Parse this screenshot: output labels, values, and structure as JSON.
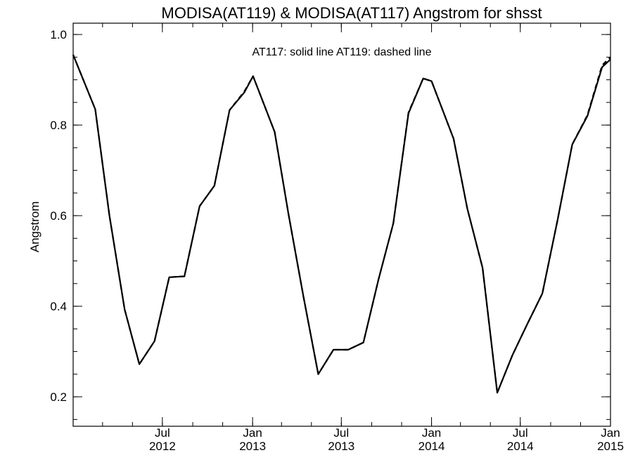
{
  "chart_data": {
    "type": "line",
    "title": "MODISA(AT119) & MODISA(AT117)  Angstrom for shsst",
    "annotation": "AT117: solid line   AT119: dashed line",
    "xlabel": "",
    "ylabel": "Angstrom",
    "xlim": [
      "2012-01-01",
      "2015-01-01"
    ],
    "ylim": [
      0.135,
      1.025
    ],
    "y_ticks": [
      0.2,
      0.4,
      0.6,
      0.8,
      1.0
    ],
    "y_tick_labels": [
      "0.2",
      "0.4",
      "0.6",
      "0.8",
      "1.0"
    ],
    "y_minor_step": 0.05,
    "x_ticks": [
      {
        "date": "2012-07-01",
        "month": "Jul",
        "year": "2012"
      },
      {
        "date": "2013-01-01",
        "month": "Jan",
        "year": "2013"
      },
      {
        "date": "2013-07-01",
        "month": "Jul",
        "year": "2013"
      },
      {
        "date": "2014-01-01",
        "month": "Jan",
        "year": "2014"
      },
      {
        "date": "2014-07-01",
        "month": "Jul",
        "year": "2014"
      },
      {
        "date": "2015-01-01",
        "month": "Jan",
        "year": "2015"
      }
    ],
    "x_minor_dates": [
      "2012-01-01",
      "2012-03-01",
      "2012-05-01",
      "2012-07-01",
      "2012-09-01",
      "2012-11-01",
      "2013-01-01",
      "2013-03-01",
      "2013-05-01",
      "2013-07-01",
      "2013-09-01",
      "2013-11-01",
      "2014-01-01",
      "2014-03-01",
      "2014-05-01",
      "2014-07-01",
      "2014-09-01",
      "2014-11-01",
      "2015-01-01"
    ],
    "grid": false,
    "series": [
      {
        "name": "AT117",
        "style": "solid",
        "color": "#000000",
        "points": [
          [
            "2012-01-01",
            0.955
          ],
          [
            "2012-02-15",
            0.835
          ],
          [
            "2012-03-15",
            0.6
          ],
          [
            "2012-04-15",
            0.393
          ],
          [
            "2012-05-15",
            0.272
          ],
          [
            "2012-06-15",
            0.323
          ],
          [
            "2012-07-15",
            0.464
          ],
          [
            "2012-08-15",
            0.466
          ],
          [
            "2012-09-15",
            0.621
          ],
          [
            "2012-10-15",
            0.666
          ],
          [
            "2012-11-15",
            0.833
          ],
          [
            "2012-12-15",
            0.872
          ],
          [
            "2013-01-02",
            0.908
          ],
          [
            "2013-02-15",
            0.785
          ],
          [
            "2013-03-15",
            0.605
          ],
          [
            "2013-04-15",
            0.42
          ],
          [
            "2013-05-15",
            0.25
          ],
          [
            "2013-06-15",
            0.304
          ],
          [
            "2013-07-15",
            0.304
          ],
          [
            "2013-08-15",
            0.32
          ],
          [
            "2013-09-15",
            0.46
          ],
          [
            "2013-10-15",
            0.583
          ],
          [
            "2013-11-15",
            0.826
          ],
          [
            "2013-12-15",
            0.903
          ],
          [
            "2014-01-01",
            0.897
          ],
          [
            "2014-02-15",
            0.77
          ],
          [
            "2014-03-15",
            0.615
          ],
          [
            "2014-04-15",
            0.485
          ],
          [
            "2014-05-15",
            0.209
          ],
          [
            "2014-06-15",
            0.292
          ],
          [
            "2014-07-15",
            0.36
          ],
          [
            "2014-08-15",
            0.428
          ],
          [
            "2014-09-15",
            0.59
          ],
          [
            "2014-10-15",
            0.757
          ],
          [
            "2014-11-15",
            0.82
          ],
          [
            "2014-12-15",
            0.928
          ],
          [
            "2015-01-01",
            0.945
          ]
        ]
      },
      {
        "name": "AT119",
        "style": "dashed",
        "color": "#000000",
        "points": [
          [
            "2012-01-01",
            0.955
          ],
          [
            "2012-02-15",
            0.835
          ],
          [
            "2012-03-15",
            0.6
          ],
          [
            "2012-04-15",
            0.393
          ],
          [
            "2012-05-15",
            0.272
          ],
          [
            "2012-06-15",
            0.323
          ],
          [
            "2012-07-15",
            0.464
          ],
          [
            "2012-08-15",
            0.466
          ],
          [
            "2012-09-15",
            0.621
          ],
          [
            "2012-10-15",
            0.666
          ],
          [
            "2012-11-15",
            0.833
          ],
          [
            "2012-12-15",
            0.874
          ],
          [
            "2013-01-02",
            0.908
          ],
          [
            "2013-02-15",
            0.785
          ],
          [
            "2013-03-15",
            0.605
          ],
          [
            "2013-04-15",
            0.42
          ],
          [
            "2013-05-15",
            0.25
          ],
          [
            "2013-06-15",
            0.304
          ],
          [
            "2013-07-15",
            0.304
          ],
          [
            "2013-08-15",
            0.32
          ],
          [
            "2013-09-15",
            0.46
          ],
          [
            "2013-10-15",
            0.583
          ],
          [
            "2013-11-15",
            0.828
          ],
          [
            "2013-12-15",
            0.903
          ],
          [
            "2014-01-01",
            0.897
          ],
          [
            "2014-02-15",
            0.77
          ],
          [
            "2014-03-15",
            0.615
          ],
          [
            "2014-04-15",
            0.485
          ],
          [
            "2014-05-15",
            0.209
          ],
          [
            "2014-06-15",
            0.292
          ],
          [
            "2014-07-15",
            0.36
          ],
          [
            "2014-08-15",
            0.428
          ],
          [
            "2014-09-15",
            0.59
          ],
          [
            "2014-10-15",
            0.757
          ],
          [
            "2014-11-15",
            0.822
          ],
          [
            "2014-12-15",
            0.932
          ],
          [
            "2015-01-01",
            0.95
          ]
        ]
      }
    ]
  }
}
